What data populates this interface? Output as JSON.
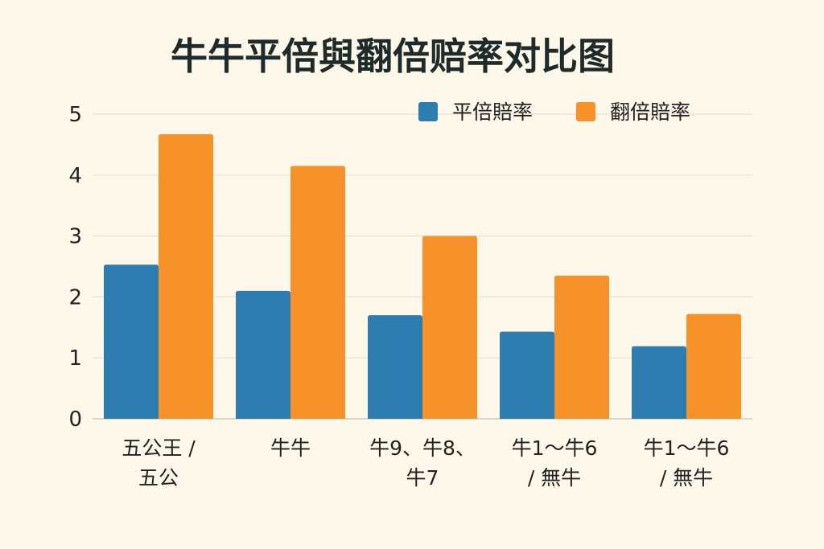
{
  "chart_data": {
    "type": "bar",
    "title": "牛牛平倍與翻倍赔率对比图",
    "xlabel": "",
    "ylabel": "",
    "ylim": [
      0,
      5
    ],
    "yticks": [
      "0",
      "1",
      "2",
      "3",
      "4",
      "5"
    ],
    "grid": true,
    "legend_position": "top-right",
    "categories": [
      [
        "五公王 /",
        "五公"
      ],
      [
        "牛牛"
      ],
      [
        "牛9、牛8、",
        "牛7"
      ],
      [
        "牛1～牛6",
        "/ 無牛"
      ],
      [
        "牛1～牛6",
        "/ 無牛"
      ]
    ],
    "series": [
      {
        "name": "平倍賠率",
        "color": "#2e7db0",
        "values": [
          2.53,
          2.1,
          1.7,
          1.43,
          1.19
        ]
      },
      {
        "name": "翻倍賠率",
        "color": "#f7922a",
        "values": [
          4.67,
          4.15,
          3.0,
          2.35,
          1.72
        ]
      }
    ]
  }
}
